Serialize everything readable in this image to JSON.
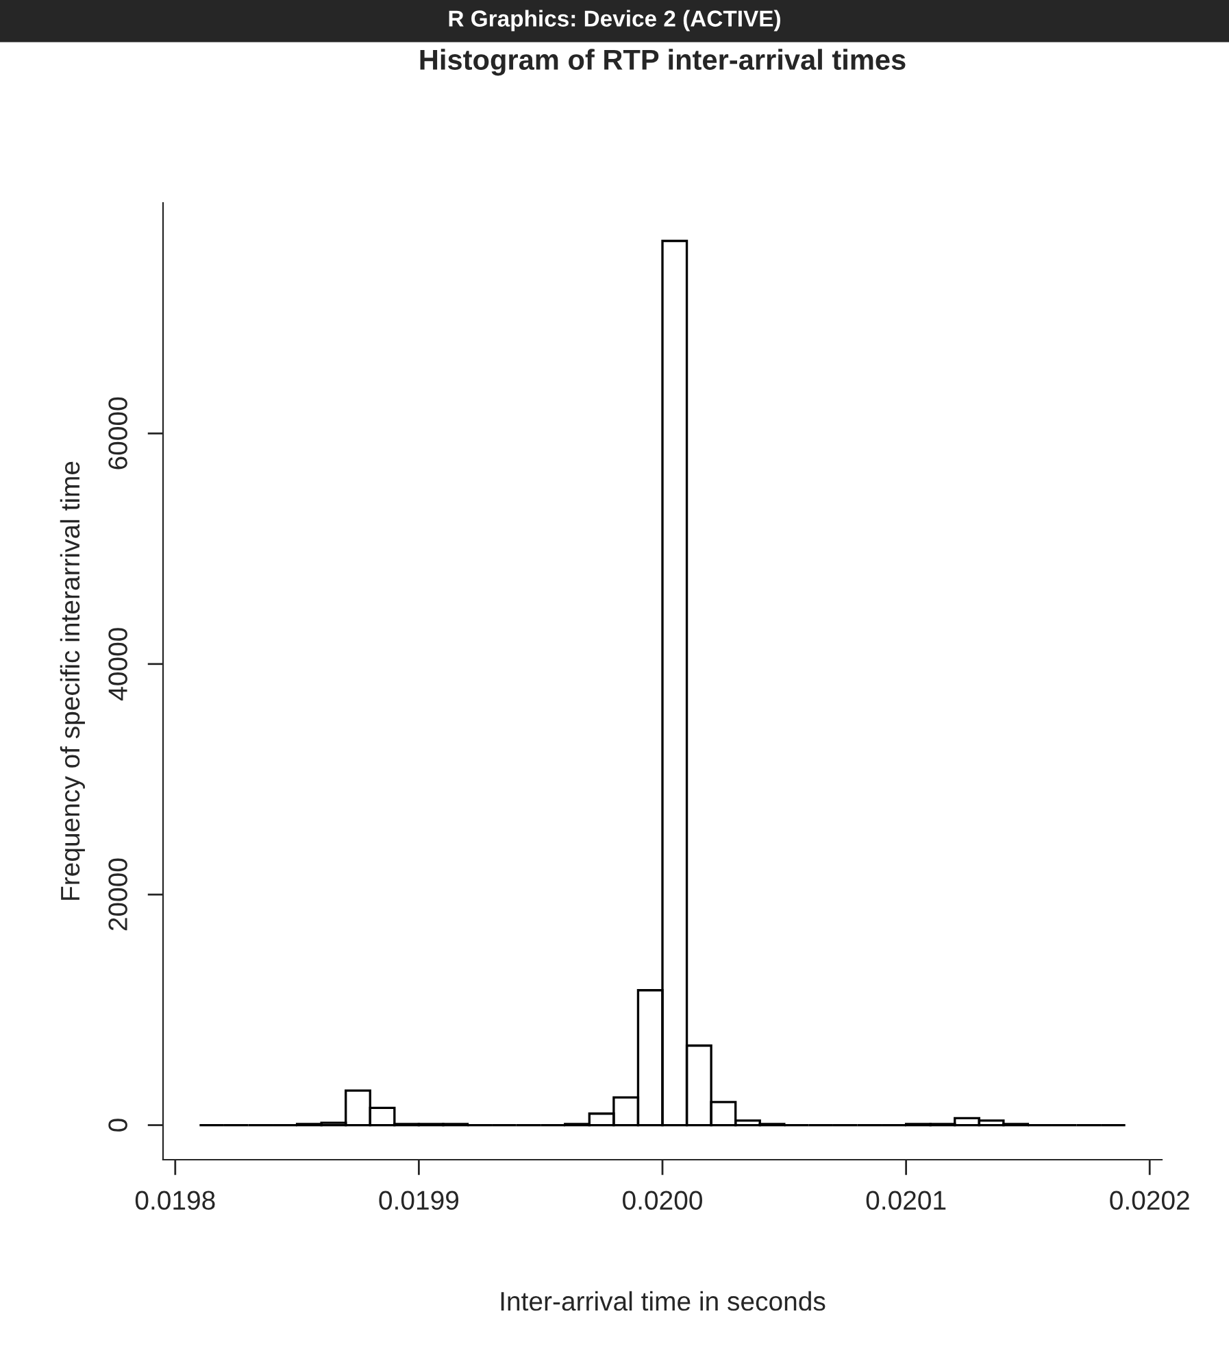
{
  "chart_data": {
    "type": "histogram",
    "title": "Histogram of RTP inter-arrival times",
    "xlabel": "Inter-arrival time in seconds",
    "ylabel": "Frequency of specific interarrival time",
    "annotations": [
      "R Graphics: Device 2 (ACTIVE)"
    ],
    "bins": [
      0.01981,
      0.01982,
      0.01983,
      0.01984,
      0.01985,
      0.01986,
      0.01987,
      0.01988,
      0.01989,
      0.0199,
      0.01991,
      0.01992,
      0.01993,
      0.01994,
      0.01995,
      0.01996,
      0.01997,
      0.01998,
      0.01999,
      0.02,
      0.02001,
      0.02002,
      0.02003,
      0.02004,
      0.02005,
      0.02006,
      0.02007,
      0.02008,
      0.02009,
      0.0201,
      0.02011,
      0.02012,
      0.02013,
      0.02014,
      0.02015,
      0.02016,
      0.02017,
      0.02018,
      0.02019
    ],
    "values": [
      0,
      0,
      0,
      0,
      100,
      200,
      3000,
      1500,
      100,
      100,
      100,
      0,
      0,
      0,
      0,
      100,
      1000,
      2400,
      11700,
      76700,
      6900,
      2000,
      400,
      100,
      0,
      0,
      0,
      0,
      0,
      100,
      100,
      600,
      400,
      100,
      0,
      0,
      0,
      0
    ],
    "color": "#000000",
    "xlim": [
      0.019795,
      0.020205
    ],
    "xticks": [
      {
        "value": 0.0198,
        "label": "0.0198"
      },
      {
        "value": 0.0199,
        "label": "0.0199"
      },
      {
        "value": 0.02,
        "label": "0.0200"
      },
      {
        "value": 0.0201,
        "label": "0.0201"
      },
      {
        "value": 0.0202,
        "label": "0.0202"
      }
    ],
    "ylim": [
      -3000,
      80000
    ],
    "yticks": [
      0,
      20000,
      40000,
      60000
    ],
    "grid": false
  }
}
